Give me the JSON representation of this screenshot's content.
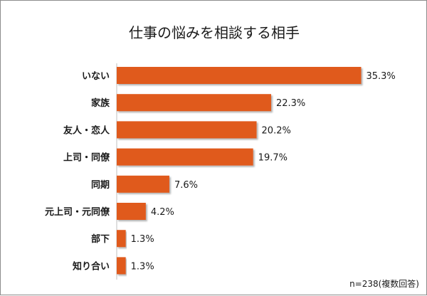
{
  "chart_data": {
    "type": "bar",
    "orientation": "horizontal",
    "title": "仕事の悩みを相談する相手",
    "categories": [
      "いない",
      "家族",
      "友人・恋人",
      "上司・同僚",
      "同期",
      "元上司・元同僚",
      "部下",
      "知り合い"
    ],
    "values": [
      35.3,
      22.3,
      20.2,
      19.7,
      7.6,
      4.2,
      1.3,
      1.3
    ],
    "value_labels": [
      "35.3%",
      "22.3%",
      "20.2%",
      "19.7%",
      "7.6%",
      "4.2%",
      "1.3%",
      "1.3%"
    ],
    "unit": "%",
    "xlim": [
      0,
      37
    ],
    "grid": false,
    "legend": "none",
    "bar_color": "#e05a1e",
    "note": "n=238(複数回答)"
  }
}
